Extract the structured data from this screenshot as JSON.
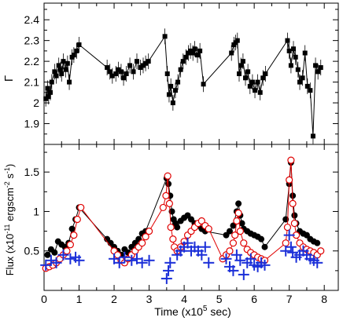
{
  "chart_data": [
    {
      "type": "scatter",
      "panel": "top",
      "ylabel": "Γ",
      "xlim": [
        0,
        8.4
      ],
      "ylim": [
        1.8,
        2.48
      ],
      "yticks": [
        1.9,
        2,
        2.1,
        2.2,
        2.3,
        2.4
      ],
      "ytick_labels": [
        "1.9",
        "2",
        "2.1",
        "2.2",
        "2.3",
        "2.4"
      ],
      "grid": false,
      "series": [
        {
          "marker": "filled-square",
          "color": "#000000",
          "connected": true,
          "x": [
            0.05,
            0.1,
            0.13,
            0.18,
            0.22,
            0.3,
            0.35,
            0.42,
            0.47,
            0.5,
            0.55,
            0.62,
            0.67,
            0.72,
            0.8,
            0.85,
            0.93,
            1.0,
            1.8,
            1.88,
            1.95,
            2.05,
            2.12,
            2.2,
            2.27,
            2.35,
            2.45,
            2.55,
            2.65,
            2.75,
            2.83,
            2.9,
            2.98,
            3.45,
            3.52,
            3.57,
            3.62,
            3.68,
            3.75,
            3.82,
            3.9,
            3.97,
            4.05,
            4.12,
            4.18,
            4.25,
            4.3,
            4.38,
            4.45,
            4.55,
            5.35,
            5.42,
            5.47,
            5.52,
            5.57,
            5.62,
            5.68,
            5.75,
            5.82,
            5.88,
            5.95,
            6.02,
            6.1,
            6.17,
            6.25,
            6.32,
            6.95,
            7.0,
            7.05,
            7.12,
            7.18,
            7.25,
            7.3,
            7.38,
            7.45,
            7.52,
            7.6,
            7.68,
            7.75,
            7.82,
            7.9
          ],
          "y": [
            2.02,
            2.07,
            2.03,
            2.05,
            2.1,
            2.15,
            2.13,
            2.18,
            2.16,
            2.14,
            2.2,
            2.16,
            2.19,
            2.1,
            2.22,
            2.23,
            2.25,
            2.28,
            2.17,
            2.15,
            2.13,
            2.14,
            2.16,
            2.15,
            2.12,
            2.14,
            2.18,
            2.15,
            2.2,
            2.17,
            2.18,
            2.19,
            2.2,
            2.32,
            2.14,
            2.04,
            2.08,
            2.0,
            2.06,
            2.1,
            2.16,
            2.2,
            2.22,
            2.24,
            2.25,
            2.24,
            2.26,
            2.23,
            2.25,
            2.09,
            2.24,
            2.28,
            2.29,
            2.3,
            2.14,
            2.18,
            2.2,
            2.12,
            2.15,
            2.08,
            2.1,
            2.06,
            2.1,
            2.05,
            2.12,
            2.14,
            2.3,
            2.25,
            2.18,
            2.26,
            2.22,
            2.16,
            2.1,
            2.12,
            2.24,
            2.08,
            2.06,
            1.84,
            2.18,
            2.15,
            2.17
          ]
        }
      ]
    },
    {
      "type": "scatter",
      "panel": "bottom",
      "xlabel": "Time (x10⁵ sec)",
      "ylabel": "Flux (x10⁻¹¹ ergscm⁻² s⁻¹)",
      "ylabel_parts": {
        "main": "Flux (x10",
        "exp1": "-11",
        "mid": " ergscm",
        "exp2": "-2",
        "mid2": " s",
        "exp3": "-1",
        "end": ")"
      },
      "xlabel_parts": {
        "main": "Time (x10",
        "exp": "5",
        "end": " sec)"
      },
      "xlim": [
        0,
        8.4
      ],
      "ylim": [
        0,
        1.85
      ],
      "xticks": [
        0,
        1,
        2,
        3,
        4,
        5,
        6,
        7,
        8
      ],
      "xtick_labels": [
        "0",
        "1",
        "2",
        "3",
        "4",
        "5",
        "6",
        "7",
        "8"
      ],
      "yticks": [
        0.5,
        1,
        1.5
      ],
      "ytick_labels": [
        "0.5",
        "1",
        "1.5"
      ],
      "grid": false,
      "series": [
        {
          "marker": "filled-circle",
          "color": "#000000",
          "connected": true,
          "x": [
            0.1,
            0.2,
            0.3,
            0.4,
            0.5,
            0.6,
            0.7,
            0.8,
            0.9,
            1.0,
            1.8,
            1.9,
            2.0,
            2.1,
            2.2,
            2.3,
            2.4,
            2.5,
            2.6,
            2.7,
            2.8,
            2.9,
            3.5,
            3.55,
            3.6,
            3.65,
            3.7,
            3.75,
            3.8,
            3.9,
            4.0,
            4.1,
            4.2,
            4.3,
            4.4,
            4.5,
            4.6,
            5.2,
            5.3,
            5.4,
            5.5,
            5.55,
            5.6,
            5.65,
            5.7,
            5.8,
            5.9,
            6.0,
            6.1,
            6.2,
            6.3,
            6.9,
            7.0,
            7.05,
            7.1,
            7.15,
            7.2,
            7.3,
            7.4,
            7.5,
            7.6,
            7.7,
            7.8
          ],
          "y": [
            0.45,
            0.52,
            0.48,
            0.62,
            0.58,
            0.55,
            0.6,
            0.78,
            0.9,
            1.05,
            0.65,
            0.6,
            0.55,
            0.5,
            0.45,
            0.52,
            0.48,
            0.55,
            0.6,
            0.65,
            0.72,
            0.75,
            1.42,
            1.35,
            1.2,
            1.0,
            0.9,
            0.85,
            0.8,
            0.88,
            0.92,
            0.95,
            0.9,
            0.85,
            0.82,
            0.78,
            0.75,
            0.7,
            0.75,
            0.82,
            1.0,
            1.1,
            0.95,
            0.85,
            0.78,
            0.75,
            0.72,
            0.7,
            0.68,
            0.65,
            0.55,
            0.9,
            1.35,
            1.62,
            1.2,
            0.95,
            0.85,
            0.75,
            0.72,
            0.7,
            0.65,
            0.62,
            0.6
          ]
        },
        {
          "marker": "open-circle",
          "color": "#e00000",
          "connected": true,
          "x": [
            0.05,
            0.15,
            0.25,
            0.35,
            0.45,
            0.55,
            0.65,
            0.75,
            0.85,
            0.95,
            1.05,
            2.0,
            2.1,
            2.2,
            2.3,
            2.4,
            2.5,
            2.6,
            2.7,
            2.8,
            2.9,
            3.0,
            3.4,
            3.48,
            3.53,
            3.58,
            3.62,
            3.68,
            3.72,
            3.8,
            3.9,
            4.0,
            4.1,
            4.2,
            4.3,
            4.4,
            4.5,
            4.6,
            4.7,
            5.1,
            5.2,
            5.3,
            5.4,
            5.45,
            5.5,
            5.55,
            5.6,
            5.7,
            5.8,
            5.9,
            6.0,
            6.1,
            6.2,
            6.3,
            6.9,
            6.95,
            7.0,
            7.05,
            7.1,
            7.15,
            7.2,
            7.3,
            7.4,
            7.5,
            7.6,
            7.7,
            7.8,
            7.9
          ],
          "y": [
            0.28,
            0.3,
            0.32,
            0.35,
            0.4,
            0.45,
            0.5,
            0.58,
            0.7,
            0.9,
            1.05,
            0.5,
            0.45,
            0.38,
            0.35,
            0.4,
            0.45,
            0.5,
            0.55,
            0.6,
            0.68,
            0.75,
            1.05,
            1.2,
            1.45,
            1.1,
            0.8,
            0.65,
            0.55,
            0.5,
            0.55,
            0.62,
            0.7,
            0.75,
            0.8,
            0.85,
            0.88,
            0.82,
            0.78,
            0.4,
            0.45,
            0.5,
            0.6,
            0.7,
            0.88,
            0.98,
            0.75,
            0.6,
            0.52,
            0.48,
            0.45,
            0.42,
            0.4,
            0.38,
            0.6,
            0.8,
            1.4,
            1.65,
            1.1,
            0.85,
            0.7,
            0.6,
            0.55,
            0.52,
            0.5,
            0.48,
            0.45,
            0.5
          ]
        },
        {
          "marker": "plus",
          "color": "#1a2ed8",
          "connected": false,
          "x": [
            0.05,
            0.2,
            0.35,
            0.55,
            0.75,
            0.9,
            1.0,
            2.0,
            2.15,
            2.3,
            2.5,
            2.65,
            2.8,
            3.0,
            3.5,
            3.55,
            3.6,
            3.8,
            3.9,
            4.0,
            4.1,
            4.2,
            4.3,
            4.4,
            4.5,
            4.6,
            4.7,
            5.2,
            5.3,
            5.4,
            5.5,
            5.6,
            5.7,
            5.8,
            5.9,
            6.0,
            6.1,
            6.2,
            6.3,
            6.9,
            7.0,
            7.05,
            7.1,
            7.2,
            7.3,
            7.4,
            7.5,
            7.6,
            7.7,
            7.8
          ],
          "y": [
            0.32,
            0.38,
            0.35,
            0.45,
            0.4,
            0.42,
            0.38,
            0.4,
            0.35,
            0.42,
            0.38,
            0.4,
            0.35,
            0.38,
            0.15,
            0.25,
            0.35,
            0.45,
            0.5,
            0.55,
            0.6,
            0.5,
            0.55,
            0.5,
            0.45,
            0.55,
            0.35,
            0.4,
            0.3,
            0.25,
            0.45,
            0.38,
            0.2,
            0.35,
            0.4,
            0.32,
            0.3,
            0.35,
            0.32,
            0.5,
            0.7,
            0.55,
            0.48,
            0.42,
            0.45,
            0.5,
            0.45,
            0.4,
            0.38,
            0.35
          ]
        }
      ]
    }
  ]
}
